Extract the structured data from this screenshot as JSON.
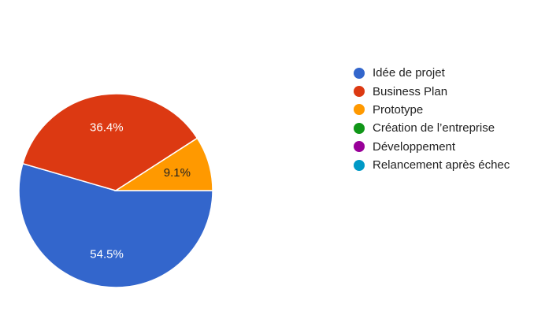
{
  "chart_data": {
    "type": "pie",
    "title": "",
    "slices": [
      {
        "label": "Idée de projet",
        "value": 54.5,
        "value_label": "54.5%",
        "color": "#3366cc"
      },
      {
        "label": "Business Plan",
        "value": 36.4,
        "value_label": "36.4%",
        "color": "#dc3912"
      },
      {
        "label": "Prototype",
        "value": 9.1,
        "value_label": "9.1%",
        "color": "#ff9900"
      },
      {
        "label": "Création de l’entreprise",
        "value": 0,
        "value_label": "",
        "color": "#109618"
      },
      {
        "label": "Développement",
        "value": 0,
        "value_label": "",
        "color": "#990099"
      },
      {
        "label": "Relancement après échec",
        "value": 0,
        "value_label": "",
        "color": "#0099c6"
      }
    ],
    "legend_position": "right"
  }
}
